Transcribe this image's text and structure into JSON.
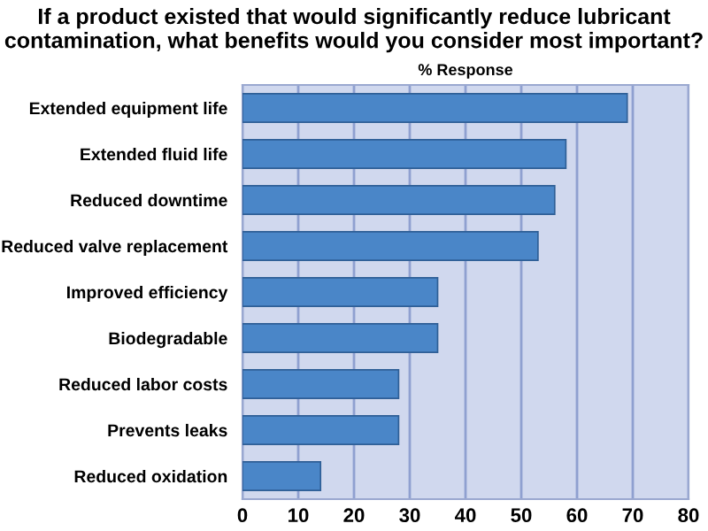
{
  "chart_data": {
    "type": "bar",
    "orientation": "horizontal",
    "title": "If a product existed that would significantly reduce lubricant contamination, what benefits would you consider most important?",
    "xlabel": "% Response",
    "categories": [
      "Extended equipment life",
      "Extended fluid life",
      "Reduced downtime",
      "Reduced valve replacement",
      "Improved efficiency",
      "Biodegradable",
      "Reduced labor costs",
      "Prevents leaks",
      "Reduced oxidation"
    ],
    "values": [
      69,
      58,
      56,
      53,
      35,
      35,
      28,
      28,
      14
    ],
    "color": "#4a86c8",
    "xlim": [
      0,
      80
    ],
    "xticks": [
      0,
      10,
      20,
      30,
      40,
      50,
      60,
      70,
      80
    ],
    "grid": "x",
    "legend": false
  }
}
